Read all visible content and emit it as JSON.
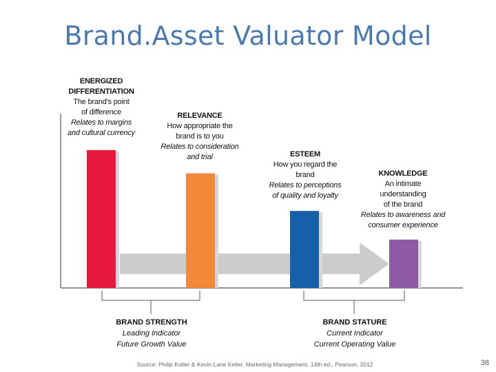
{
  "title": "Brand.Asset Valuator Model",
  "pillars": [
    {
      "name_lines": [
        "ENERGIZED",
        "DIFFERENTIATION"
      ],
      "desc_lines": [
        "The brand's point",
        "of difference"
      ],
      "relates_lines": [
        "Relates to margins",
        "and cultural currency"
      ],
      "level": 0.77,
      "color": "#e8193c"
    },
    {
      "name_lines": [
        "RELEVANCE"
      ],
      "desc_lines": [
        "How appropriate the",
        "brand is to you"
      ],
      "relates_lines": [
        "Relates to consideration",
        "and trial"
      ],
      "level": 0.64,
      "color": "#f3873a"
    },
    {
      "name_lines": [
        "ESTEEM"
      ],
      "desc_lines": [
        "How you regard the",
        "brand"
      ],
      "relates_lines": [
        "Relates to perceptions",
        "of quality and loyalty"
      ],
      "level": 0.43,
      "color": "#1560a8"
    },
    {
      "name_lines": [
        "KNOWLEDGE"
      ],
      "desc_lines": [
        "An intimate",
        "understanding",
        "of the brand"
      ],
      "relates_lines": [
        "Relates to awareness and",
        "consumer experience"
      ],
      "level": 0.27,
      "color": "#8e5aa3"
    }
  ],
  "groups": [
    {
      "name": "BRAND STRENGTH",
      "line1": "Leading Indicator",
      "line2": "Future Growth Value"
    },
    {
      "name": "BRAND STATURE",
      "line1": "Current Indicator",
      "line2": "Current Operating Value"
    }
  ],
  "source": "Source: Philip Kotler & Kevin Lane Keller, Marketing Management, 14th ed., Pearson, 2012",
  "page_number": "38",
  "colors": {
    "title": "#4a79b0",
    "arrow": "#cccccc",
    "axis": "#555555"
  }
}
